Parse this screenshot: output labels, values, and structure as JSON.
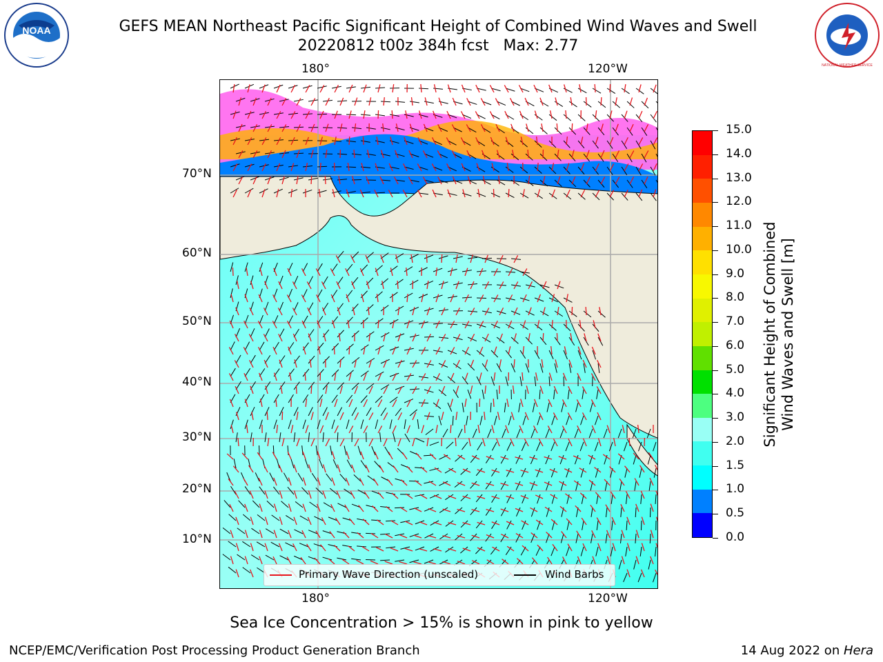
{
  "title": {
    "line1": "GEFS MEAN Northeast Pacific Significant Height of Combined Wind Waves and Swell",
    "line2": "20220812 t00z 384h fcst   Max: 2.77"
  },
  "map": {
    "top_lon_labels": [
      "180°",
      "120°W"
    ],
    "bottom_lon_labels": [
      "180°",
      "120°W"
    ],
    "lat_labels": [
      "70°N",
      "60°N",
      "50°N",
      "40°N",
      "30°N",
      "20°N",
      "10°N"
    ],
    "legend": {
      "wave_label": "Primary Wave Direction (unscaled)",
      "wind_label": "Wind Barbs"
    },
    "colors": {
      "land": "#efecdc",
      "ocean_low": "#00ffff",
      "ocean_mid": "#99fff5",
      "wave_arrow": "#e8141b",
      "wind_barb": "#000000"
    }
  },
  "colorbar": {
    "title_line1": "Significant Height of Combined",
    "title_line2": "Wind Waves and Swell [m]",
    "tick_labels": [
      "0.0",
      "0.5",
      "1.0",
      "1.5",
      "2.0",
      "3.0",
      "4.0",
      "5.0",
      "6.0",
      "7.0",
      "8.0",
      "9.0",
      "10.0",
      "11.0",
      "12.0",
      "13.0",
      "14.0",
      "15.0"
    ],
    "colors": [
      "#0000ff",
      "#0080ff",
      "#00ffff",
      "#40fff0",
      "#99fff5",
      "#4dff80",
      "#00e000",
      "#60e000",
      "#c0f000",
      "#e0f000",
      "#f8f800",
      "#ffe000",
      "#ffb000",
      "#ff8800",
      "#ff5000",
      "#ff2000",
      "#ff0000"
    ]
  },
  "note": "Sea Ice Concentration > 15% is shown in pink to yellow",
  "footer": {
    "left": "NCEP/EMC/Verification Post Processing Product Generation Branch",
    "right_prefix": "14 Aug 2022 on ",
    "right_machine": "Hera"
  },
  "logos": {
    "noaa_text": "NOAA",
    "nws_text": "NATIONAL WEATHER SERVICE"
  }
}
